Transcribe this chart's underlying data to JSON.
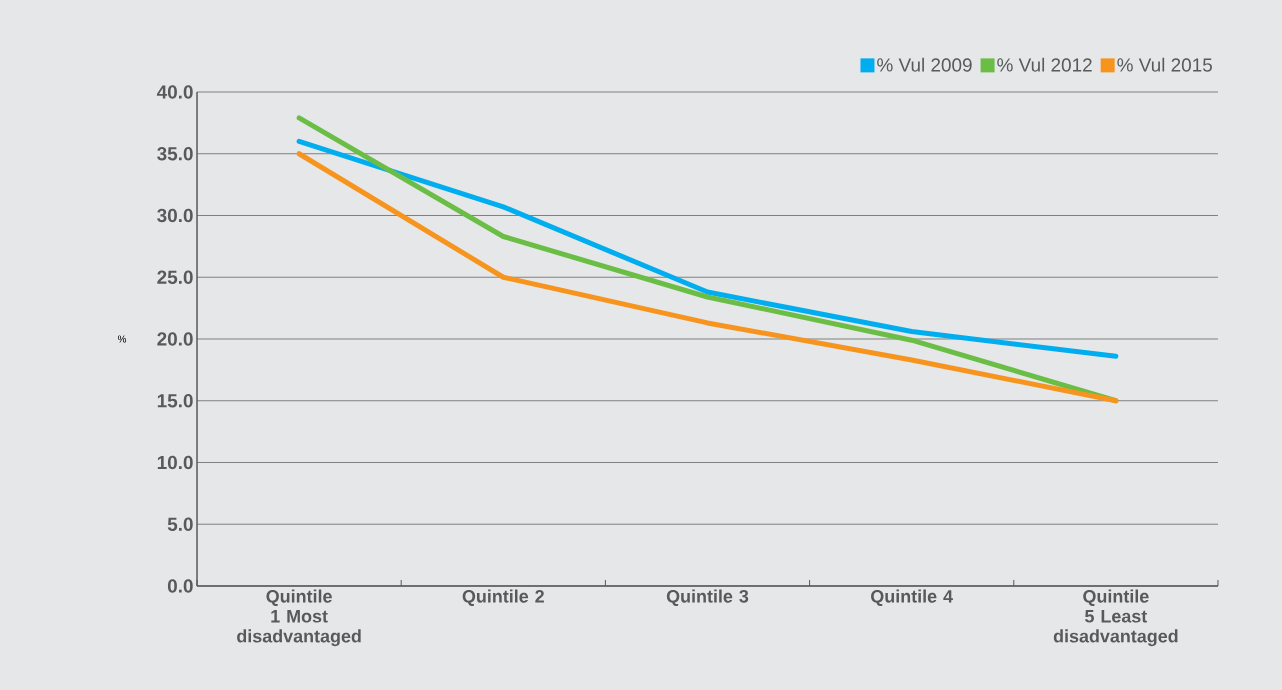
{
  "chart_data": {
    "type": "line",
    "ylabel": "%",
    "categories": [
      "Quintile 1 Most disadvantaged",
      "Quintile 2",
      "Quintile 3",
      "Quintile 4",
      "Quintile 5 Least disadvantaged"
    ],
    "series": [
      {
        "name": "% Vul 2009",
        "color": "#00aeef",
        "values": [
          36.0,
          30.7,
          23.8,
          20.6,
          18.6
        ]
      },
      {
        "name": "% Vul 2012",
        "color": "#6abd45",
        "values": [
          37.9,
          28.3,
          23.4,
          19.9,
          15.0
        ]
      },
      {
        "name": "% Vul 2015",
        "color": "#f7941d",
        "values": [
          35.0,
          25.0,
          21.3,
          18.3,
          15.0
        ]
      }
    ],
    "ylim": [
      0,
      40
    ],
    "yticks": [
      {
        "value": 0,
        "label": "0.0"
      },
      {
        "value": 5,
        "label": "5.0"
      },
      {
        "value": 10,
        "label": "10.0"
      },
      {
        "value": 15,
        "label": "15.0"
      },
      {
        "value": 20,
        "label": "20.0"
      },
      {
        "value": 25,
        "label": "25.0"
      },
      {
        "value": 30,
        "label": "30.0"
      },
      {
        "value": 35,
        "label": "35.0"
      },
      {
        "value": 40,
        "label": "40.0"
      }
    ],
    "grid": "y",
    "legend": "top right",
    "line_style": "solid"
  }
}
